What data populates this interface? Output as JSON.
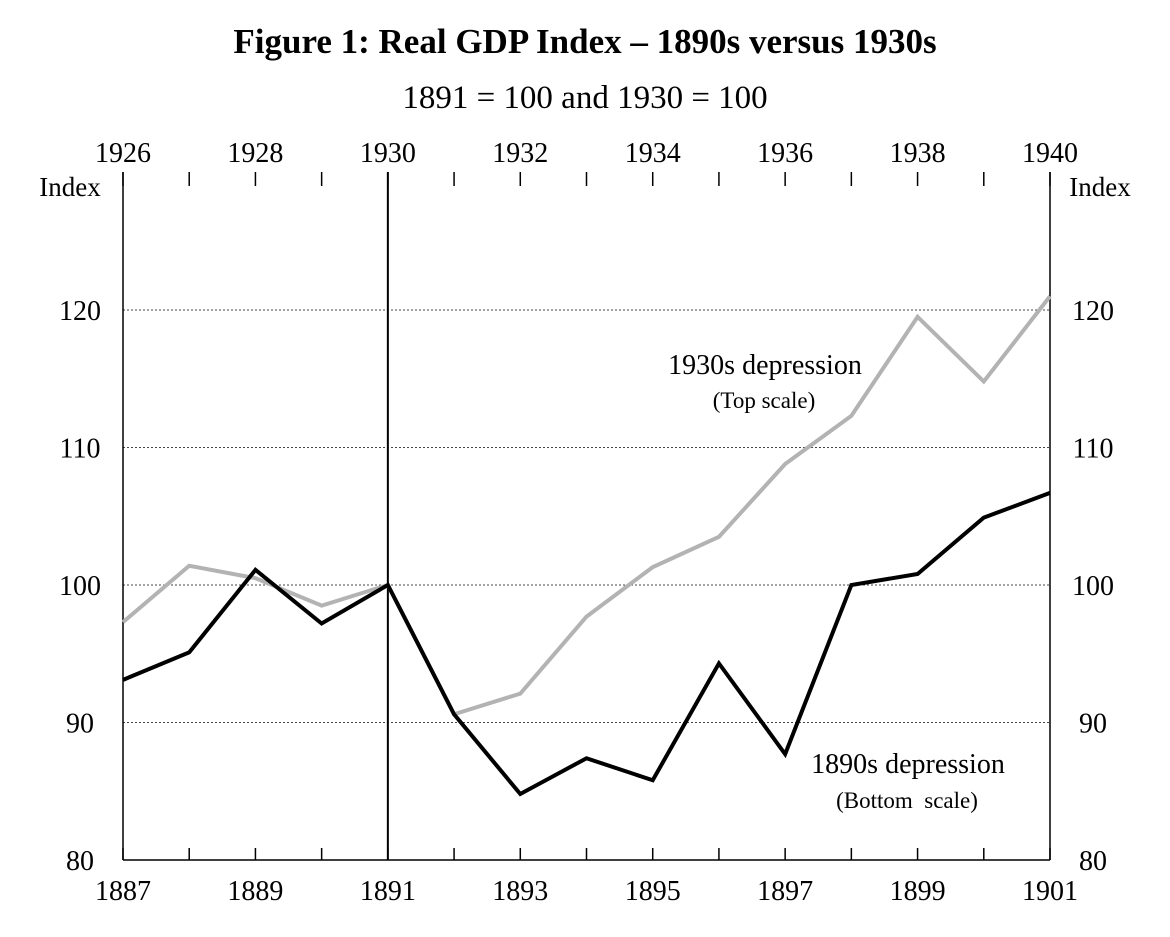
{
  "chart_data": {
    "type": "line",
    "title": "Figure 1: Real GDP Index – 1890s versus 1930s",
    "subtitle": "1891 = 100 and 1930 = 100",
    "ylabel_left": "Index",
    "ylabel_right": "Index",
    "ylim": [
      80,
      130
    ],
    "y_ticks": [
      80,
      90,
      100,
      110,
      120
    ],
    "bottom_axis": {
      "range": [
        1887,
        1901
      ],
      "tick_labels": [
        "1887",
        "1889",
        "1891",
        "1893",
        "1895",
        "1897",
        "1899",
        "1901"
      ]
    },
    "top_axis": {
      "range": [
        1926,
        1940
      ],
      "tick_labels": [
        "1926",
        "1928",
        "1930",
        "1932",
        "1934",
        "1936",
        "1938",
        "1940"
      ]
    },
    "reference_line_index": 4,
    "series": [
      {
        "name": "1930s depression",
        "scale_note": "(Top scale)",
        "scale": "top",
        "color": "#b3b3b3",
        "x": [
          1926,
          1927,
          1928,
          1929,
          1930,
          1931,
          1932,
          1933,
          1934,
          1935,
          1936,
          1937,
          1938,
          1939,
          1940
        ],
        "values": [
          97.3,
          101.4,
          100.5,
          98.5,
          100.0,
          90.6,
          92.1,
          97.7,
          101.3,
          103.5,
          108.8,
          112.3,
          119.5,
          114.8,
          121.0
        ]
      },
      {
        "name": "1890s depression",
        "scale_note": "(Bottom  scale)",
        "scale": "bottom",
        "color": "#000000",
        "x": [
          1887,
          1888,
          1889,
          1890,
          1891,
          1892,
          1893,
          1894,
          1895,
          1896,
          1897,
          1898,
          1899,
          1900,
          1901
        ],
        "values": [
          93.1,
          95.1,
          101.1,
          97.2,
          100.0,
          90.6,
          84.8,
          87.4,
          85.8,
          94.3,
          87.7,
          100.0,
          100.8,
          104.9,
          106.7
        ]
      }
    ]
  }
}
